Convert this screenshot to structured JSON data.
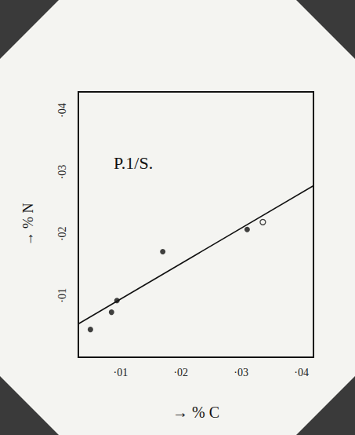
{
  "chart_data": {
    "type": "scatter",
    "annotation": "P.1/S.",
    "x_label": "→ % C",
    "y_label": "→ % N",
    "xlim": [
      0.003,
      0.042
    ],
    "ylim": [
      0,
      0.043
    ],
    "xticks": [
      {
        "value": 0.01,
        "label": "·01"
      },
      {
        "value": 0.02,
        "label": "·02"
      },
      {
        "value": 0.03,
        "label": "·03"
      },
      {
        "value": 0.04,
        "label": "·04"
      }
    ],
    "yticks": [
      {
        "value": 0.01,
        "label": "·01"
      },
      {
        "value": 0.02,
        "label": "·02"
      },
      {
        "value": 0.03,
        "label": "·03"
      },
      {
        "value": 0.04,
        "label": "·04"
      }
    ],
    "grid": false,
    "series": [
      {
        "type": "scatter",
        "marker": "filled",
        "color": "#111111",
        "x": [
          0.005,
          0.0085,
          0.0094,
          0.017,
          0.031
        ],
        "values": [
          0.0045,
          0.0073,
          0.0092,
          0.0171,
          0.0207
        ]
      },
      {
        "type": "scatter",
        "marker": "open",
        "color": "#111111",
        "x": [
          0.0336
        ],
        "values": [
          0.0219
        ]
      },
      {
        "type": "line",
        "line_style": "solid",
        "color": "#111111",
        "x": [
          0.003,
          0.042
        ],
        "values": [
          0.0054,
          0.0278
        ]
      }
    ]
  }
}
